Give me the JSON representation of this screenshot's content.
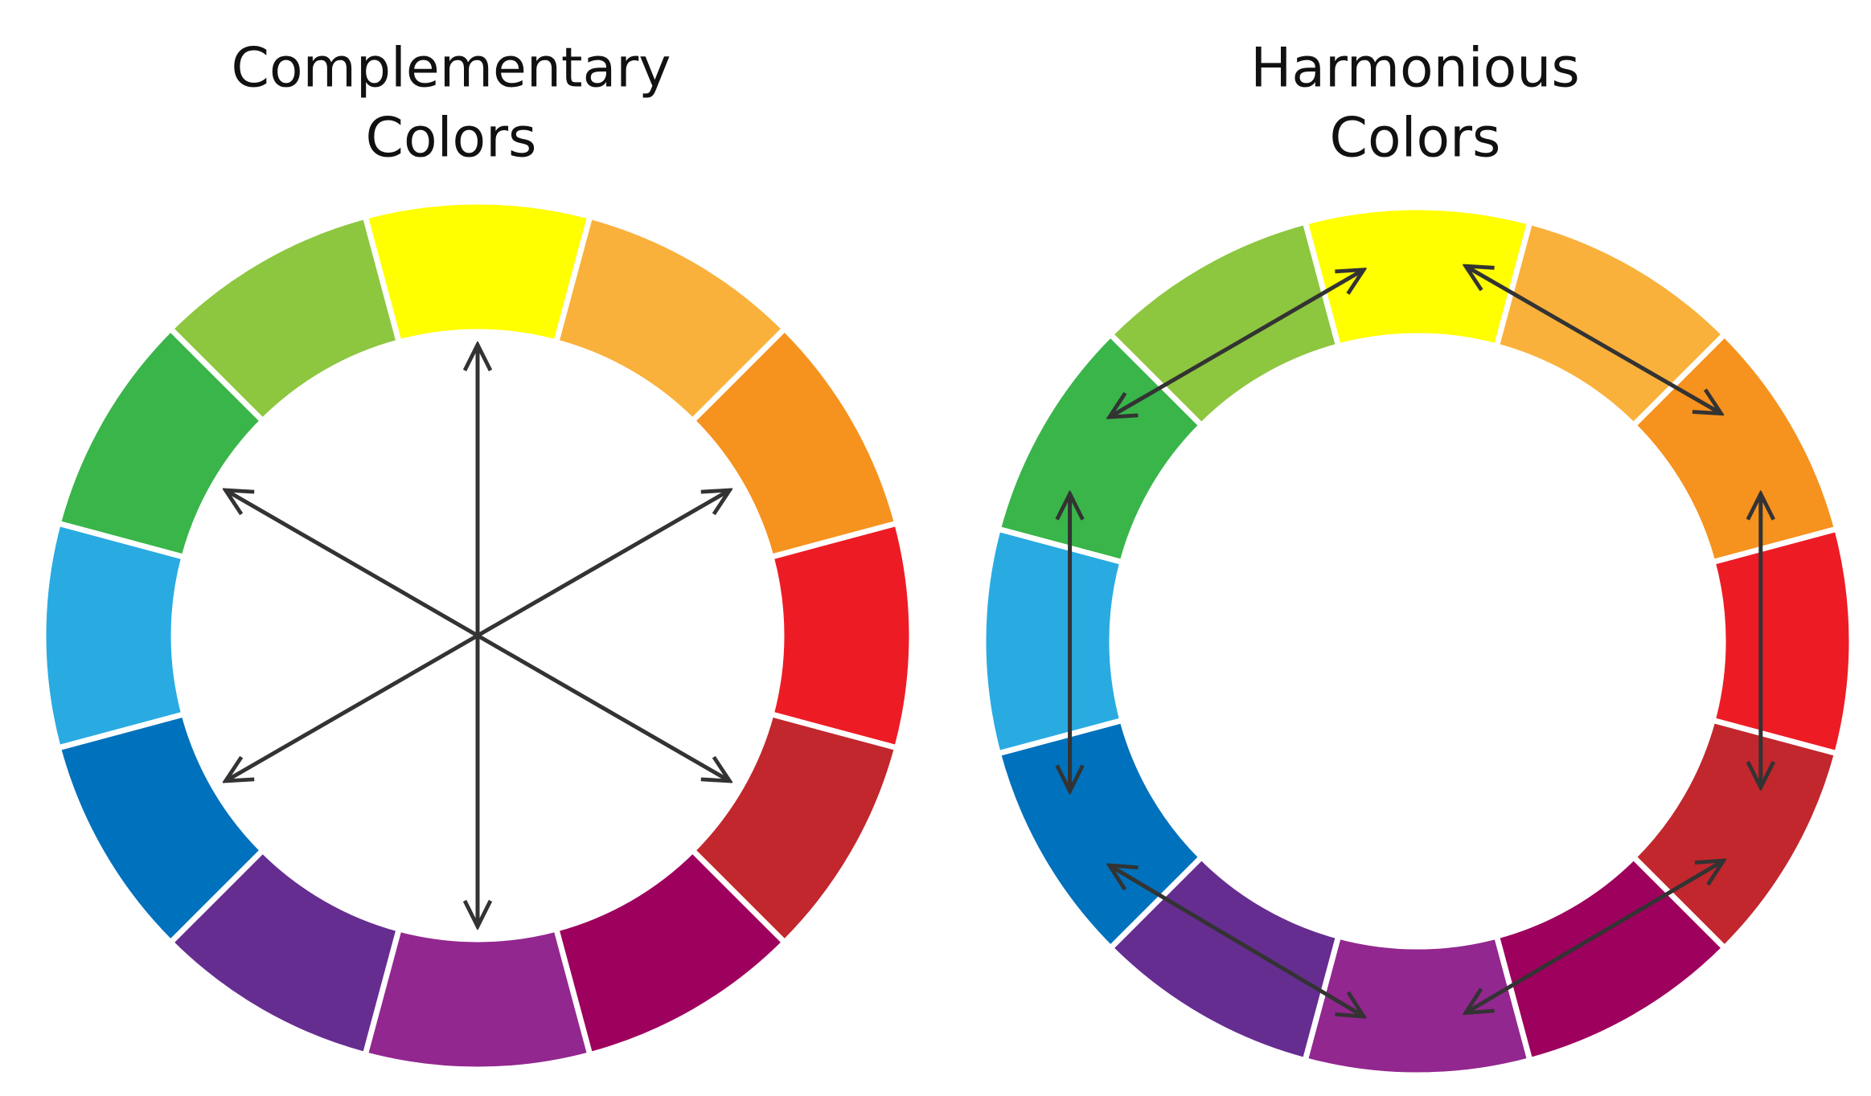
{
  "left": {
    "title": [
      "Complementary",
      "Colors"
    ]
  },
  "right": {
    "title": [
      "Harmonious",
      "Colors"
    ]
  }
}
